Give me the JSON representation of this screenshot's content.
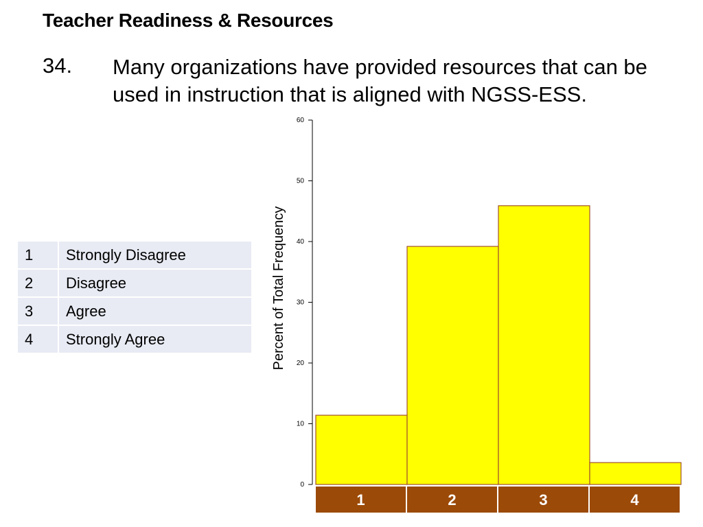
{
  "slide": {
    "title": "Teacher Readiness & Resources",
    "question_number": "34.",
    "question_text": "Many organizations have provided resources that can be used in instruction that is aligned with NGSS-ESS."
  },
  "legend": [
    {
      "code": "1",
      "label": "Strongly Disagree"
    },
    {
      "code": "2",
      "label": "Disagree"
    },
    {
      "code": "3",
      "label": "Agree"
    },
    {
      "code": "4",
      "label": "Strongly Agree"
    }
  ],
  "colors": {
    "bar_fill": "#ffff00",
    "bar_stroke": "#a0522d",
    "category_band": "#9c4a08",
    "category_text": "#ffffff",
    "legend_row": "#e8ebf4"
  },
  "chart_data": {
    "type": "bar",
    "categories": [
      "1",
      "2",
      "3",
      "4"
    ],
    "values": [
      11.4,
      39.2,
      45.9,
      3.6
    ],
    "ylabel": "Percent of Total Frequency",
    "xlabel": "",
    "ylim": [
      0,
      60
    ],
    "yticks": [
      0,
      10,
      20,
      30,
      40,
      50,
      60
    ],
    "grid": false
  }
}
